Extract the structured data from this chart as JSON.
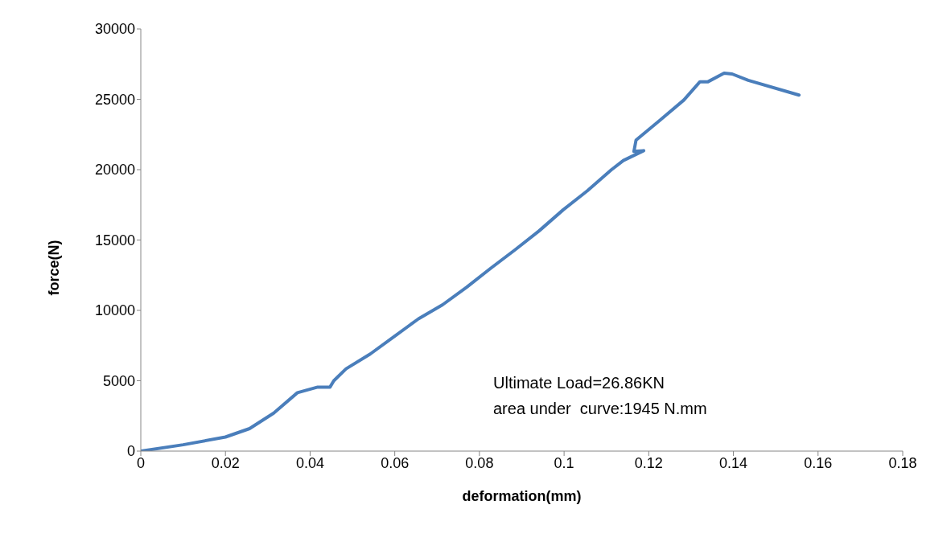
{
  "chart_data": {
    "type": "line",
    "xlabel": "deformation(mm)",
    "ylabel": "force(N)",
    "annotations": [
      "Ultimate Load=26.86KN",
      "area under  curve:1945 N.mm"
    ],
    "xlim": [
      0,
      0.18
    ],
    "xticks": [
      0,
      0.02,
      0.04,
      0.06,
      0.08,
      0.1,
      0.12,
      0.14,
      0.16,
      0.18
    ],
    "ylim": [
      0,
      30000
    ],
    "yticks": [
      0,
      5000,
      10000,
      15000,
      20000,
      25000,
      30000
    ],
    "grid": false,
    "marker": "none",
    "line_style": "solid",
    "series": [
      {
        "color": "#4a7ebb",
        "x": [
          0,
          0.01,
          0.02,
          0.0257,
          0.0314,
          0.037,
          0.0418,
          0.0447,
          0.0456,
          0.0485,
          0.0542,
          0.0599,
          0.0656,
          0.0713,
          0.077,
          0.0827,
          0.0884,
          0.0941,
          0.0998,
          0.1055,
          0.1112,
          0.114,
          0.1188,
          0.1165,
          0.117,
          0.1226,
          0.1283,
          0.1321,
          0.134,
          0.1378,
          0.1397,
          0.1435,
          0.1555
        ],
        "values": [
          0,
          450,
          1000,
          1600,
          2700,
          4150,
          4550,
          4550,
          5000,
          5850,
          6900,
          8150,
          9400,
          10400,
          11650,
          13000,
          14300,
          15650,
          17150,
          18500,
          20000,
          20650,
          21350,
          21300,
          22100,
          23500,
          24950,
          26250,
          26250,
          26860,
          26800,
          26350,
          25300
        ]
      }
    ]
  }
}
